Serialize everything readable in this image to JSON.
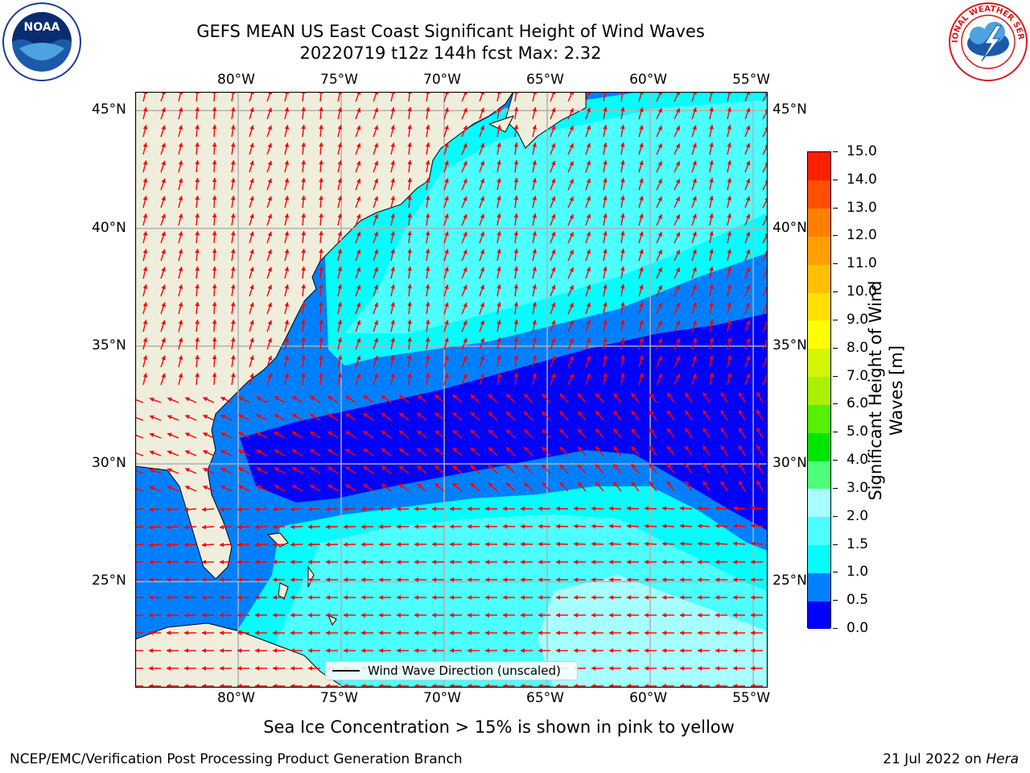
{
  "title_line1": "GEFS MEAN US East Coast Significant Height of Wind Waves",
  "title_line2": "20220719 t12z 144h fcst   Max: 2.32",
  "map": {
    "lon_ticks": [
      "80°W",
      "75°W",
      "70°W",
      "65°W",
      "60°W",
      "55°W"
    ],
    "lat_ticks": [
      "45°N",
      "40°N",
      "35°N",
      "30°N",
      "25°N"
    ],
    "lon_range": [
      -85,
      -54.3
    ],
    "lat_range": [
      20.5,
      45.8
    ],
    "land_color": "#efeedc",
    "grid_color": "#b0b0b0",
    "arrow_color": "#ff0000"
  },
  "legend_label": "Wind Wave Direction (unscaled)",
  "colorbar": {
    "title": "Significant Height of Wind Waves [m]",
    "labels": [
      "15.0",
      "14.0",
      "13.0",
      "12.0",
      "11.0",
      "10.0",
      "9.0",
      "8.0",
      "7.0",
      "6.0",
      "5.0",
      "4.0",
      "3.0",
      "2.0",
      "1.5",
      "1.0",
      "0.5",
      "0.0"
    ],
    "colors": [
      "#0000ff",
      "#0080ff",
      "#00ffff",
      "#4dffff",
      "#a8ffff",
      "#4dff7a",
      "#00e600",
      "#55ef00",
      "#aaf000",
      "#d4f500",
      "#ffff00",
      "#ffe000",
      "#ffc000",
      "#ffa000",
      "#ff8000",
      "#ff5000",
      "#ff2000",
      "#ff0000"
    ]
  },
  "sea_ice_note": "Sea Ice Concentration > 15% is shown in pink to yellow",
  "footer_left": "NCEP/EMC/Verification Post Processing Product Generation Branch",
  "footer_date": "21 Jul 2022 on ",
  "footer_machine": "Hera",
  "logos": {
    "noaa_text": "NOAA",
    "nws_text": "NATIONAL WEATHER SERVICE"
  }
}
